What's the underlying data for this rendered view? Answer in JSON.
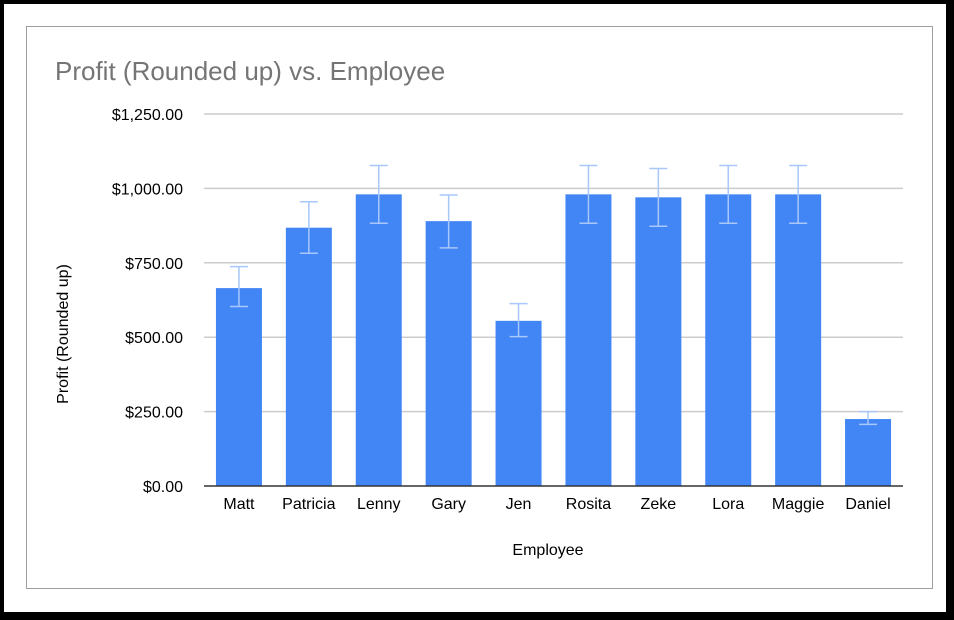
{
  "chart_data": {
    "type": "bar",
    "title": "Profit (Rounded up) vs. Employee",
    "xlabel": "Employee",
    "ylabel": "Profit (Rounded up)",
    "ylim": [
      0,
      1250
    ],
    "yticks": [
      0,
      250,
      500,
      750,
      1000,
      1250
    ],
    "ytick_labels": [
      "$0.00",
      "$250.00",
      "$500.00",
      "$750.00",
      "$1,000.00",
      "$1,250.00"
    ],
    "grid": true,
    "legend": "none",
    "categories": [
      "Matt",
      "Patricia",
      "Lenny",
      "Gary",
      "Jen",
      "Rosita",
      "Zeke",
      "Lora",
      "Maggie",
      "Daniel"
    ],
    "series": [
      {
        "values": [
          665,
          868,
          980,
          890,
          555,
          980,
          970,
          980,
          980,
          225
        ],
        "error_low": [
          603,
          782,
          883,
          800,
          502,
          883,
          873,
          883,
          883,
          207
        ],
        "error_high": [
          737,
          955,
          1077,
          978,
          613,
          1077,
          1067,
          1077,
          1077,
          250
        ],
        "color": "#4285f4"
      }
    ],
    "error_bar_color": "#a8c7fa",
    "grid_color": "#cccccc",
    "axis_color": "#333333"
  }
}
